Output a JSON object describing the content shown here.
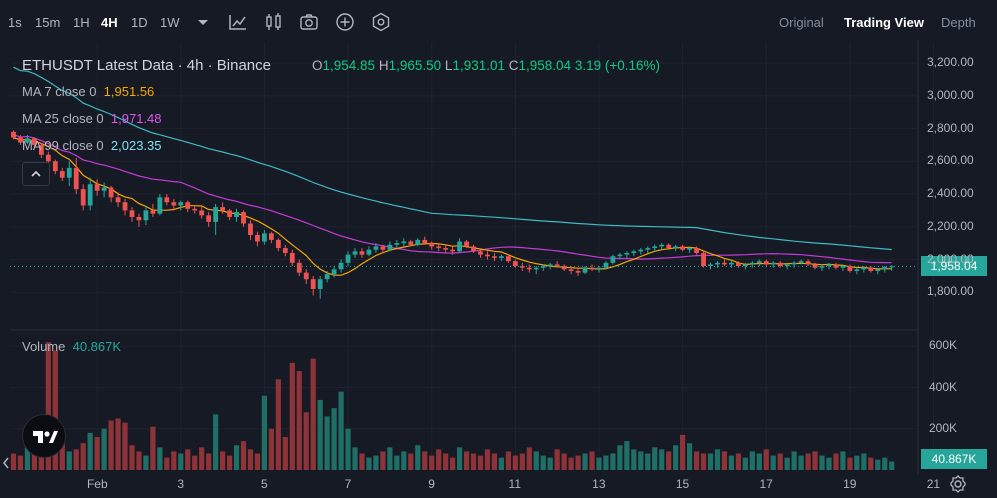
{
  "toolbar": {
    "timeframes": [
      "1s",
      "15m",
      "1H",
      "4H",
      "1D",
      "1W"
    ],
    "active_timeframe": "4H",
    "dropdown_icon": "caret-down-icon",
    "tools": [
      "candle-style-icon",
      "indicators-icon",
      "camera-icon",
      "plus-circle-icon",
      "settings-icon"
    ],
    "views": [
      "Original",
      "Trading View",
      "Depth"
    ],
    "active_view": "Trading View"
  },
  "legend": {
    "symbol": "ETHUSDT Latest Data · 4h · Binance",
    "open_label": "O",
    "open": "1,954.85",
    "high_label": "H",
    "high": "1,965.50",
    "low_label": "L",
    "low": "1,931.01",
    "close_label": "C",
    "close": "1,958.04",
    "change": "3.19 (+0.16%)",
    "ma7_label": "MA 7 close 0",
    "ma7_value": "1,951.56",
    "ma25_label": "MA 25 close 0",
    "ma25_value": "1,971.48",
    "ma99_label": "MA 99 close 0",
    "ma99_value": "2,023.35",
    "collapse_icon": "chevron-up-icon"
  },
  "volume_legend": {
    "label": "Volume",
    "value": "40.867K"
  },
  "current_price_label": "1,958.04",
  "current_volume_label": "40.867K",
  "logo": "tradingview-logo",
  "settings_icon": "gear-icon",
  "scroll_icon": "chevron-left-icon",
  "colors": {
    "background": "#161a25",
    "up": "#26a69a",
    "down": "#ef5350",
    "up_vol": "#1f6f67",
    "down_vol": "#8e3338",
    "ma7": "#f7a600",
    "ma25": "#c43bd6",
    "ma99": "#3fb9c4",
    "text_up": "#0ecb81"
  },
  "chart_data": {
    "type": "candlestick",
    "y_ticks": [
      "3,200.00",
      "3,000.00",
      "2,800.00",
      "2,600.00",
      "2,400.00",
      "2,200.00",
      "2,000.00",
      "1,800.00"
    ],
    "y_tick_values": [
      3200,
      3000,
      2800,
      2600,
      2400,
      2200,
      2000,
      1800
    ],
    "ylim": [
      1600,
      3280
    ],
    "volume_ticks": [
      "600K",
      "400K",
      "200K"
    ],
    "volume_tick_values": [
      600000,
      400000,
      200000
    ],
    "volume_ylim": [
      0,
      650000
    ],
    "x_ticks": [
      "Feb",
      "3",
      "5",
      "7",
      "9",
      "11",
      "13",
      "15",
      "17",
      "19",
      "21"
    ],
    "x_tick_index": [
      12,
      24,
      36,
      48,
      60,
      72,
      84,
      96,
      108,
      120,
      132
    ],
    "last_price": 1958.04,
    "candles": [
      [
        2780,
        2790,
        2735,
        2745
      ],
      [
        2745,
        2760,
        2700,
        2715
      ],
      [
        2715,
        2760,
        2705,
        2740
      ],
      [
        2740,
        2745,
        2690,
        2700
      ],
      [
        2700,
        2710,
        2620,
        2640
      ],
      [
        2640,
        2660,
        2580,
        2600
      ],
      [
        2600,
        2610,
        2520,
        2540
      ],
      [
        2540,
        2560,
        2480,
        2500
      ],
      [
        2500,
        2600,
        2450,
        2560
      ],
      [
        2560,
        2620,
        2400,
        2430
      ],
      [
        2430,
        2460,
        2300,
        2330
      ],
      [
        2330,
        2500,
        2300,
        2460
      ],
      [
        2460,
        2490,
        2390,
        2420
      ],
      [
        2420,
        2470,
        2380,
        2440
      ],
      [
        2440,
        2450,
        2350,
        2380
      ],
      [
        2380,
        2410,
        2320,
        2350
      ],
      [
        2350,
        2370,
        2270,
        2300
      ],
      [
        2300,
        2320,
        2230,
        2260
      ],
      [
        2260,
        2280,
        2200,
        2240
      ],
      [
        2240,
        2330,
        2210,
        2300
      ],
      [
        2300,
        2340,
        2260,
        2280
      ],
      [
        2280,
        2400,
        2270,
        2380
      ],
      [
        2380,
        2400,
        2330,
        2350
      ],
      [
        2350,
        2370,
        2300,
        2330
      ],
      [
        2330,
        2360,
        2300,
        2350
      ],
      [
        2350,
        2360,
        2290,
        2310
      ],
      [
        2310,
        2330,
        2280,
        2300
      ],
      [
        2300,
        2320,
        2250,
        2270
      ],
      [
        2270,
        2290,
        2200,
        2230
      ],
      [
        2230,
        2340,
        2150,
        2320
      ],
      [
        2320,
        2350,
        2280,
        2300
      ],
      [
        2300,
        2310,
        2240,
        2260
      ],
      [
        2260,
        2310,
        2230,
        2290
      ],
      [
        2290,
        2300,
        2200,
        2220
      ],
      [
        2220,
        2240,
        2120,
        2150
      ],
      [
        2150,
        2170,
        2080,
        2110
      ],
      [
        2110,
        2180,
        2090,
        2160
      ],
      [
        2160,
        2170,
        2100,
        2120
      ],
      [
        2120,
        2130,
        2050,
        2070
      ],
      [
        2070,
        2090,
        2020,
        2040
      ],
      [
        2040,
        2060,
        1960,
        1980
      ],
      [
        1980,
        2000,
        1900,
        1920
      ],
      [
        1920,
        1940,
        1850,
        1880
      ],
      [
        1880,
        1900,
        1780,
        1820
      ],
      [
        1820,
        1900,
        1760,
        1880
      ],
      [
        1880,
        1930,
        1860,
        1910
      ],
      [
        1910,
        1960,
        1890,
        1940
      ],
      [
        1940,
        2000,
        1920,
        1980
      ],
      [
        1980,
        2050,
        1960,
        2030
      ],
      [
        2030,
        2070,
        2010,
        2050
      ],
      [
        2050,
        2070,
        2010,
        2030
      ],
      [
        2030,
        2080,
        2020,
        2060
      ],
      [
        2060,
        2100,
        2040,
        2080
      ],
      [
        2080,
        2090,
        2040,
        2060
      ],
      [
        2060,
        2110,
        2050,
        2090
      ],
      [
        2090,
        2120,
        2070,
        2100
      ],
      [
        2100,
        2130,
        2080,
        2110
      ],
      [
        2110,
        2120,
        2080,
        2090
      ],
      [
        2090,
        2130,
        2080,
        2120
      ],
      [
        2120,
        2140,
        2090,
        2100
      ],
      [
        2100,
        2110,
        2060,
        2080
      ],
      [
        2080,
        2100,
        2050,
        2070
      ],
      [
        2070,
        2090,
        2040,
        2060
      ],
      [
        2060,
        2080,
        2030,
        2050
      ],
      [
        2050,
        2130,
        2040,
        2110
      ],
      [
        2110,
        2120,
        2070,
        2080
      ],
      [
        2080,
        2090,
        2040,
        2050
      ],
      [
        2050,
        2060,
        2010,
        2030
      ],
      [
        2030,
        2050,
        2000,
        2020
      ],
      [
        2020,
        2040,
        1990,
        2010
      ],
      [
        2010,
        2030,
        1990,
        2020
      ],
      [
        2020,
        2030,
        1980,
        1990
      ],
      [
        1990,
        2000,
        1950,
        1960
      ],
      [
        1960,
        1980,
        1930,
        1950
      ],
      [
        1950,
        1970,
        1920,
        1940
      ],
      [
        1940,
        1960,
        1910,
        1950
      ],
      [
        1950,
        1970,
        1930,
        1960
      ],
      [
        1960,
        1980,
        1940,
        1970
      ],
      [
        1970,
        1990,
        1950,
        1960
      ],
      [
        1960,
        1970,
        1930,
        1940
      ],
      [
        1940,
        1960,
        1910,
        1930
      ],
      [
        1930,
        1950,
        1900,
        1920
      ],
      [
        1920,
        1960,
        1910,
        1950
      ],
      [
        1950,
        1970,
        1930,
        1940
      ],
      [
        1940,
        1960,
        1920,
        1950
      ],
      [
        1950,
        1990,
        1940,
        1980
      ],
      [
        1980,
        2030,
        1970,
        2020
      ],
      [
        2020,
        2040,
        2000,
        2030
      ],
      [
        2030,
        2050,
        2010,
        2040
      ],
      [
        2040,
        2060,
        2020,
        2050
      ],
      [
        2050,
        2070,
        2030,
        2060
      ],
      [
        2060,
        2080,
        2040,
        2070
      ],
      [
        2070,
        2090,
        2050,
        2080
      ],
      [
        2080,
        2100,
        2060,
        2090
      ],
      [
        2090,
        2100,
        2060,
        2070
      ],
      [
        2070,
        2090,
        2050,
        2080
      ],
      [
        2080,
        2090,
        2050,
        2060
      ],
      [
        2060,
        2080,
        2040,
        2070
      ],
      [
        2070,
        2080,
        2030,
        2040
      ],
      [
        2040,
        2050,
        1950,
        1960
      ],
      [
        1960,
        1980,
        1940,
        1970
      ],
      [
        1970,
        1990,
        1950,
        1980
      ],
      [
        1980,
        2000,
        1960,
        1970
      ],
      [
        1970,
        1990,
        1950,
        1980
      ],
      [
        1980,
        1990,
        1950,
        1960
      ],
      [
        1960,
        1980,
        1940,
        1970
      ],
      [
        1970,
        1990,
        1950,
        1980
      ],
      [
        1980,
        2000,
        1960,
        1990
      ],
      [
        1990,
        2000,
        1960,
        1970
      ],
      [
        1970,
        1990,
        1950,
        1980
      ],
      [
        1980,
        1990,
        1950,
        1960
      ],
      [
        1960,
        1980,
        1940,
        1970
      ],
      [
        1970,
        1990,
        1950,
        1980
      ],
      [
        1980,
        2000,
        1970,
        1990
      ],
      [
        1990,
        2000,
        1960,
        1970
      ],
      [
        1970,
        1980,
        1940,
        1950
      ],
      [
        1950,
        1970,
        1930,
        1960
      ],
      [
        1960,
        1980,
        1940,
        1970
      ],
      [
        1970,
        1980,
        1940,
        1950
      ],
      [
        1950,
        1970,
        1930,
        1960
      ],
      [
        1960,
        1970,
        1920,
        1930
      ],
      [
        1930,
        1950,
        1910,
        1940
      ],
      [
        1940,
        1960,
        1920,
        1950
      ],
      [
        1950,
        1960,
        1920,
        1930
      ],
      [
        1930,
        1950,
        1910,
        1940
      ],
      [
        1940,
        1960,
        1920,
        1955
      ],
      [
        1954.85,
        1965.5,
        1931.01,
        1958.04
      ]
    ],
    "volumes": [
      80,
      70,
      110,
      100,
      150,
      620,
      580,
      140,
      90,
      100,
      130,
      180,
      160,
      200,
      240,
      250,
      230,
      120,
      90,
      70,
      210,
      110,
      60,
      90,
      80,
      100,
      70,
      110,
      80,
      270,
      90,
      70,
      120,
      140,
      100,
      80,
      360,
      200,
      440,
      160,
      520,
      480,
      280,
      540,
      340,
      260,
      300,
      380,
      200,
      110,
      80,
      60,
      70,
      90,
      110,
      70,
      90,
      80,
      120,
      90,
      70,
      100,
      80,
      60,
      110,
      90,
      80,
      70,
      100,
      80,
      60,
      90,
      70,
      80,
      110,
      90,
      70,
      60,
      100,
      80,
      60,
      70,
      80,
      90,
      60,
      70,
      80,
      120,
      140,
      100,
      90,
      80,
      110,
      100,
      90,
      120,
      170,
      130,
      90,
      80,
      80,
      100,
      90,
      70,
      80,
      60,
      90,
      80,
      100,
      70,
      80,
      60,
      90,
      70,
      80,
      90,
      70,
      60,
      80,
      90,
      60,
      70,
      80,
      60,
      50,
      60,
      40.867
    ],
    "ma7": [],
    "ma25": [],
    "ma99": []
  }
}
